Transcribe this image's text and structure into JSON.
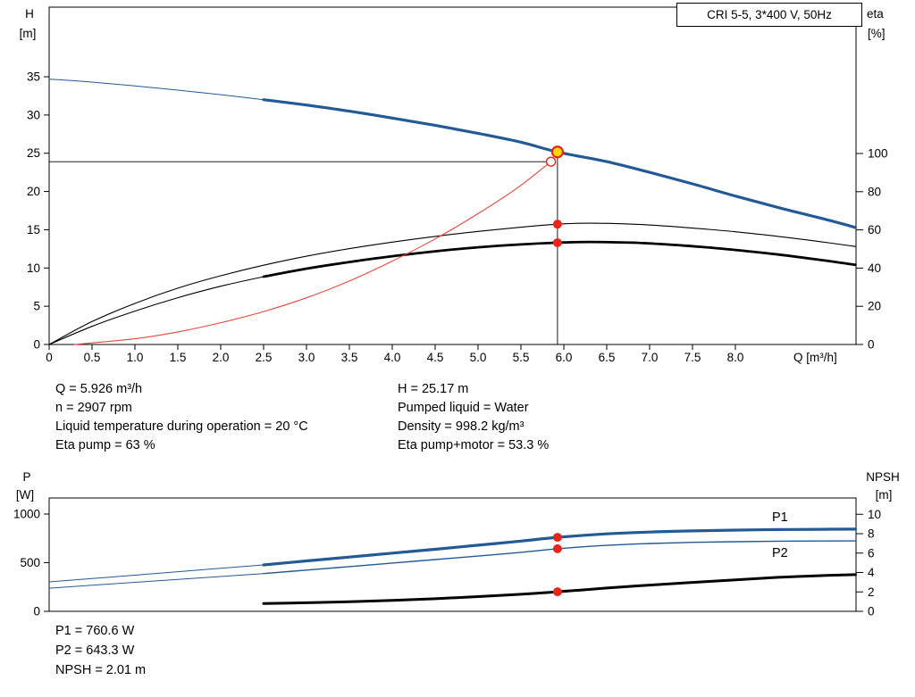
{
  "title_box": "CRI 5-5, 3*400 V, 50Hz",
  "colors": {
    "blue": "#235a96",
    "black": "#000000",
    "red": "#e8251b",
    "red_curve": "#e2473b",
    "yellow": "#ffd800"
  },
  "chart_data": [
    {
      "id": "hq-eta-chart",
      "type": "line",
      "xlim": [
        0,
        9.4
      ],
      "axis_left": {
        "label": "H",
        "unit": "[m]",
        "ticks": [
          "0",
          "5",
          "10",
          "15",
          "20",
          "25",
          "30",
          "35"
        ]
      },
      "axis_right": {
        "label": "eta",
        "unit": "[%]",
        "ticks": [
          "0",
          "20",
          "40",
          "60",
          "80",
          "100"
        ]
      },
      "axis_x": {
        "label": "Q [m³/h]",
        "ticks": [
          "0",
          "0.5",
          "1.0",
          "1.5",
          "2.0",
          "2.5",
          "3.0",
          "3.5",
          "4.0",
          "4.5",
          "5.0",
          "5.5",
          "6.0",
          "6.5",
          "7.0",
          "7.5",
          "8.0"
        ]
      },
      "series": [
        {
          "name": "hq-curve-lead",
          "axis": "h",
          "color": "blue",
          "width": 1,
          "points": [
            [
              0,
              34.7
            ],
            [
              0.5,
              34.3
            ],
            [
              1,
              33.8
            ],
            [
              1.5,
              33.25
            ],
            [
              2,
              32.65
            ],
            [
              2.5,
              32
            ]
          ]
        },
        {
          "name": "hq-curve",
          "axis": "h",
          "color": "blue",
          "width": 3.2,
          "points": [
            [
              2.5,
              32
            ],
            [
              3,
              31.3
            ],
            [
              3.5,
              30.5
            ],
            [
              4,
              29.6
            ],
            [
              4.5,
              28.65
            ],
            [
              5,
              27.6
            ],
            [
              5.5,
              26.45
            ],
            [
              5.926,
              25.17
            ],
            [
              6.5,
              23.9
            ],
            [
              7,
              22.5
            ],
            [
              7.5,
              21
            ],
            [
              8,
              19.4
            ],
            [
              8.5,
              17.9
            ],
            [
              9,
              16.5
            ],
            [
              9.4,
              15.3
            ]
          ]
        },
        {
          "name": "eta-pump-curve",
          "axis": "eta",
          "color": "black",
          "width": 1.1,
          "points": [
            [
              0,
              0
            ],
            [
              0.5,
              12
            ],
            [
              1,
              21.5
            ],
            [
              1.5,
              29.5
            ],
            [
              2,
              36
            ],
            [
              2.5,
              41.5
            ],
            [
              3,
              46.2
            ],
            [
              3.5,
              50.2
            ],
            [
              4,
              53.6
            ],
            [
              4.5,
              56.6
            ],
            [
              5,
              59.2
            ],
            [
              5.5,
              61.4
            ],
            [
              5.926,
              63
            ],
            [
              6.3,
              63.5
            ],
            [
              6.8,
              63
            ],
            [
              7.2,
              62
            ],
            [
              7.6,
              60.6
            ],
            [
              8,
              59
            ],
            [
              8.5,
              56.6
            ],
            [
              9,
              53.8
            ],
            [
              9.4,
              51.3
            ]
          ]
        },
        {
          "name": "eta-pump-motor-lead",
          "axis": "eta",
          "color": "black",
          "width": 1.1,
          "points": [
            [
              0,
              0
            ],
            [
              0.5,
              9.5
            ],
            [
              1,
              17.5
            ],
            [
              1.5,
              24.5
            ],
            [
              2,
              30.5
            ],
            [
              2.5,
              35.5
            ]
          ]
        },
        {
          "name": "eta-pump-motor-curve",
          "axis": "eta",
          "color": "black",
          "width": 2.8,
          "points": [
            [
              2.5,
              35.5
            ],
            [
              3,
              39.7
            ],
            [
              3.5,
              43.2
            ],
            [
              4,
              46.2
            ],
            [
              4.5,
              48.8
            ],
            [
              5,
              50.9
            ],
            [
              5.5,
              52.4
            ],
            [
              5.926,
              53.3
            ],
            [
              6.3,
              53.7
            ],
            [
              6.8,
              53.3
            ],
            [
              7.2,
              52.4
            ],
            [
              7.6,
              51.1
            ],
            [
              8,
              49.5
            ],
            [
              8.5,
              47.1
            ],
            [
              9,
              44.2
            ],
            [
              9.4,
              41.7
            ]
          ]
        },
        {
          "name": "system-curve",
          "axis": "h",
          "color": "red_curve",
          "width": 1.1,
          "points": [
            [
              0.3,
              0
            ],
            [
              1,
              0.75
            ],
            [
              1.5,
              1.65
            ],
            [
              2,
              2.85
            ],
            [
              2.5,
              4.3
            ],
            [
              3,
              6.1
            ],
            [
              3.5,
              8.3
            ],
            [
              4,
              10.9
            ],
            [
              4.5,
              13.8
            ],
            [
              5,
              17.1
            ],
            [
              5.45,
              20.4
            ],
            [
              5.85,
              23.9
            ]
          ]
        }
      ],
      "markers": {
        "duty_q": 5.926,
        "duty_h": 25.17,
        "ref_q": 5.85,
        "ref_h": 23.9,
        "eta_pump_pct": 63,
        "eta_motor_pct": 53.3
      }
    },
    {
      "id": "power-npsh-chart",
      "type": "line",
      "xlim": [
        0,
        9.4
      ],
      "axis_left": {
        "label": "P",
        "unit": "[W]",
        "ticks": [
          "0",
          "500",
          "1000"
        ]
      },
      "axis_right": {
        "label": "NPSH",
        "unit": "[m]",
        "ticks": [
          "0",
          "2",
          "4",
          "6",
          "8",
          "10"
        ]
      },
      "series": [
        {
          "name": "p1-curve-lead",
          "axis": "p",
          "color": "blue",
          "width": 1,
          "points": [
            [
              0,
              303
            ],
            [
              0.5,
              337
            ],
            [
              1,
              372
            ],
            [
              1.5,
              407
            ],
            [
              2,
              442
            ],
            [
              2.5,
              477
            ]
          ]
        },
        {
          "name": "p1-curve",
          "axis": "p",
          "color": "blue",
          "width": 3.2,
          "points": [
            [
              2.5,
              477
            ],
            [
              3,
              518
            ],
            [
              3.5,
              558
            ],
            [
              4,
              598
            ],
            [
              4.5,
              638
            ],
            [
              5,
              680
            ],
            [
              5.5,
              722
            ],
            [
              5.926,
              760.6
            ],
            [
              6.5,
              796
            ],
            [
              7,
              815
            ],
            [
              7.5,
              827
            ],
            [
              8,
              835
            ],
            [
              8.5,
              840
            ],
            [
              9,
              843
            ],
            [
              9.4,
              845
            ]
          ]
        },
        {
          "name": "p2-curve-lead",
          "axis": "p",
          "color": "blue",
          "width": 1,
          "points": [
            [
              0,
              238
            ],
            [
              0.5,
              268
            ],
            [
              1,
              298
            ],
            [
              1.5,
              328
            ],
            [
              2,
              358
            ],
            [
              2.5,
              388
            ]
          ]
        },
        {
          "name": "p2-curve",
          "axis": "p",
          "color": "blue",
          "width": 1.4,
          "points": [
            [
              2.5,
              388
            ],
            [
              3,
              424
            ],
            [
              3.5,
              460
            ],
            [
              4,
              496
            ],
            [
              4.5,
              532
            ],
            [
              5,
              568
            ],
            [
              5.5,
              606
            ],
            [
              5.926,
              643.3
            ],
            [
              6.5,
              678
            ],
            [
              7,
              697
            ],
            [
              7.5,
              709
            ],
            [
              8,
              716
            ],
            [
              8.5,
              721
            ],
            [
              9,
              723
            ],
            [
              9.4,
              724
            ]
          ]
        },
        {
          "name": "npsh-curve",
          "axis": "npsh",
          "color": "black",
          "width": 3,
          "points": [
            [
              2.5,
              0.8
            ],
            [
              3,
              0.88
            ],
            [
              3.5,
              0.98
            ],
            [
              4,
              1.12
            ],
            [
              4.5,
              1.3
            ],
            [
              5,
              1.52
            ],
            [
              5.5,
              1.76
            ],
            [
              5.926,
              2.01
            ],
            [
              6.5,
              2.4
            ],
            [
              7,
              2.7
            ],
            [
              7.5,
              2.98
            ],
            [
              8,
              3.25
            ],
            [
              8.5,
              3.5
            ],
            [
              9,
              3.68
            ],
            [
              9.4,
              3.78
            ]
          ]
        }
      ],
      "curve_labels": [
        {
          "text": "P1"
        },
        {
          "text": "P2"
        }
      ],
      "markers": {
        "q": 5.926,
        "p1_w": 760.6,
        "p2_w": 643.3,
        "npsh_m": 2.01
      }
    }
  ],
  "info_panel": {
    "left": [
      "Q = 5.926 m³/h",
      "n = 2907 rpm",
      "Liquid temperature during operation = 20 °C",
      "Eta pump = 63 %"
    ],
    "right": [
      "H = 25.17 m",
      "Pumped liquid = Water",
      "Density = 998.2 kg/m³",
      "Eta pump+motor = 53.3 %"
    ]
  },
  "power_panel": [
    "P1 = 760.6 W",
    "P2 = 643.3 W",
    "NPSH = 2.01 m"
  ]
}
